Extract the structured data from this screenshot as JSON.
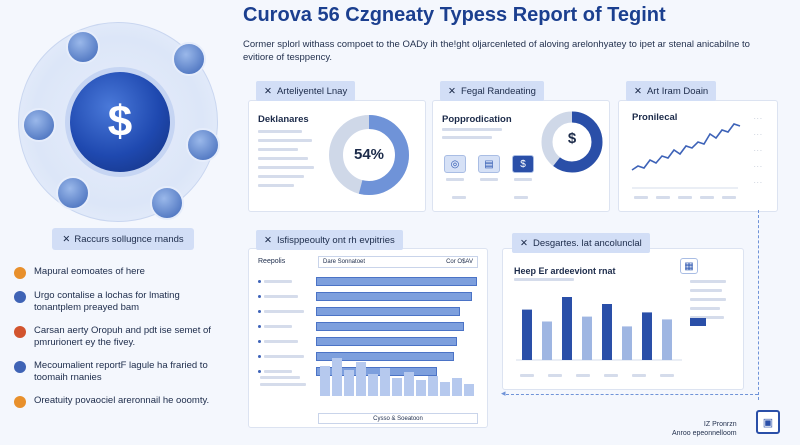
{
  "header": {
    "title": "Curova 56 Czgneaty Typess Report of Tegint",
    "intro": "Cormer splorl withass compoet to the OADy ih the!ght oljarcenleted of aloving arelonhyatey to ipet ar stenal anicabilne to evitiore of tesppency."
  },
  "hero": {
    "symbol": "$",
    "label": "Raccurs sollugnce rnands"
  },
  "bullets": [
    {
      "text": "Mapural eomoates of here",
      "color": "#e8902c"
    },
    {
      "text": "Urgo contalise a lochas for lmating tonantplem preayed bam",
      "color": "#3f63b5"
    },
    {
      "text": "Carsan aerty Oropuh and pdt ise semet of pmrurionert ey the fivey.",
      "color": "#d2542e"
    },
    {
      "text": "Mecoumalient reportF lagule ha fraried to toomaih rnanies",
      "color": "#3f63b5"
    },
    {
      "text": "Oreatuity povaociel areronnail he ooomty.",
      "color": "#e8902c"
    }
  ],
  "card1": {
    "tab": "Arteliyentel Lnay",
    "subtitle": "Deklanares",
    "percent": "54%",
    "chart_data": {
      "type": "pie",
      "values": [
        54,
        46
      ]
    }
  },
  "card2": {
    "tab": "Fegal Randeating",
    "subtitle": "Popprodication",
    "symbol": "$"
  },
  "card3": {
    "tab": "Art Iram Doain",
    "subtitle": "Pronilecal"
  },
  "card4": {
    "tab": "Isfisppeoulty ont rh evpitries",
    "header_left": "Reepolis",
    "header_mid": "Dare Sonnatoet",
    "header_right": "Cor O$AV",
    "footer": "Cysso & Soeatoon",
    "chart_data": {
      "type": "bar",
      "values": [
        0.98,
        0.95,
        0.88,
        0.9,
        0.86,
        0.84,
        0.74
      ]
    }
  },
  "card5": {
    "tab": "Desgartes. lat ancolunclal",
    "subtitle": "Heep Er ardeeviont rnat",
    "chart_data": {
      "type": "bar",
      "values": [
        0.72,
        0.55,
        0.9,
        0.62,
        0.8,
        0.48,
        0.68,
        0.58
      ]
    }
  },
  "footer": {
    "badge_line1": "IZ Pronrzn",
    "badge_line2": "Anroo epeonnelloom"
  }
}
